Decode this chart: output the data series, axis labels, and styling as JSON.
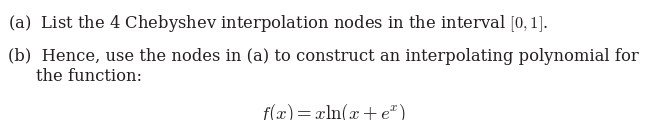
{
  "line_a": "(a)  List the 4 Chebyshev interpolation nodes in the interval $[0, 1]$.",
  "line_b1": "(b)  Hence, use the nodes in (a) to construct an interpolating polynomial for",
  "line_b2": "the function:",
  "line_formula": "$f(x) = x\\ln(x + e^{x})$",
  "text_color": "#231f20",
  "bg_color": "#ffffff",
  "fontsize": 11.8,
  "formula_fontsize": 13.5
}
